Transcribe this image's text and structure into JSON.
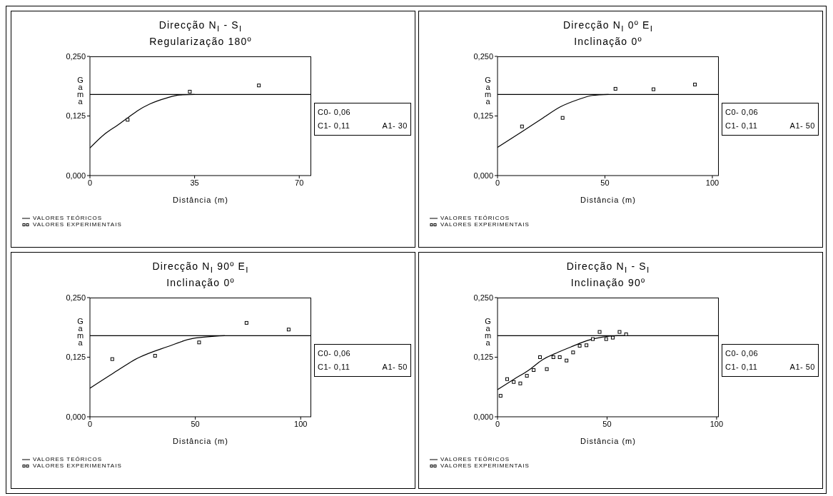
{
  "chart_data": [
    {
      "type": "scatter",
      "title": "Direcção N$_{I}$ - S$_{I}$",
      "subtitle": "Regularização 180º",
      "xlabel": "Distância (m)",
      "ylabel": "Gama",
      "xlim": [
        0,
        74
      ],
      "xticks": [
        0,
        35,
        70
      ],
      "ylim": [
        0,
        0.25
      ],
      "yticks": [
        {
          "value": 0,
          "label": "0,000"
        },
        {
          "value": 0.125,
          "label": "0,125"
        },
        {
          "value": 0.25,
          "label": "0,250"
        }
      ],
      "grid": false,
      "legend": "bottom left",
      "annotations": [
        "C0- 0,06",
        "C1- 0,11",
        "A1- 30"
      ],
      "ref_lines": [
        {
          "axis": "y",
          "value": 0.17,
          "color": "#000000"
        }
      ],
      "series": [
        {
          "name": "VALORES TEÓRICOS",
          "type": "line",
          "color": "#000000",
          "marker": "none",
          "x": [
            0,
            5.1,
            9.3,
            12.6,
            15.9,
            20,
            25.8,
            29.9,
            35
          ],
          "values": [
            0.058,
            0.088,
            0.106,
            0.121,
            0.136,
            0.15,
            0.163,
            0.169,
            0.17
          ]
        },
        {
          "name": "VALORES EXPERIMENTAIS",
          "type": "scatter",
          "color": "#000000",
          "marker": "square",
          "x": [
            12.6,
            33.4,
            56.5
          ],
          "values": [
            0.117,
            0.176,
            0.189
          ]
        }
      ]
    },
    {
      "type": "scatter",
      "title": "Direcção N$_{I}$ 0º E$_{I}$",
      "subtitle": "Inclinação 0º",
      "xlabel": "Distância (m)",
      "ylabel": "Gama",
      "xlim": [
        0,
        103
      ],
      "xticks": [
        0,
        50,
        100
      ],
      "ylim": [
        0,
        0.25
      ],
      "yticks": [
        {
          "value": 0,
          "label": "0,000"
        },
        {
          "value": 0.125,
          "label": "0,125"
        },
        {
          "value": 0.25,
          "label": "0,250"
        }
      ],
      "grid": false,
      "legend": "bottom left",
      "annotations": [
        "C0- 0,06",
        "C1- 0,11",
        "A1- 50"
      ],
      "ref_lines": [
        {
          "axis": "y",
          "value": 0.17,
          "color": "#000000"
        }
      ],
      "series": [
        {
          "name": "VALORES TEÓRICOS",
          "type": "line",
          "color": "#000000",
          "marker": "none",
          "x": [
            0,
            11.4,
            21.2,
            29.2,
            37.3,
            44.2,
            51.7
          ],
          "values": [
            0.059,
            0.092,
            0.121,
            0.144,
            0.159,
            0.168,
            0.17
          ]
        },
        {
          "name": "VALORES EXPERIMENTAIS",
          "type": "scatter",
          "color": "#000000",
          "marker": "square",
          "x": [
            11.4,
            30.3,
            54.9,
            72.6,
            91.9
          ],
          "values": [
            0.103,
            0.121,
            0.182,
            0.181,
            0.191
          ]
        }
      ]
    },
    {
      "type": "scatter",
      "title": "Direcção N$_{I}$ 90º E$_{I}$",
      "subtitle": "Inclinação 0º",
      "xlabel": "Distância (m)",
      "ylabel": "Gama",
      "xlim": [
        0,
        105
      ],
      "xticks": [
        0,
        50,
        100
      ],
      "ylim": [
        0,
        0.25
      ],
      "yticks": [
        {
          "value": 0,
          "label": "0,000"
        },
        {
          "value": 0.125,
          "label": "0,125"
        },
        {
          "value": 0.25,
          "label": "0,250"
        }
      ],
      "grid": false,
      "legend": "bottom left",
      "annotations": [
        "C0- 0,06",
        "C1- 0,11",
        "A1- 50"
      ],
      "ref_lines": [
        {
          "axis": "y",
          "value": 0.17,
          "color": "#000000"
        }
      ],
      "series": [
        {
          "name": "VALORES TEÓRICOS",
          "type": "line",
          "color": "#000000",
          "marker": "none",
          "x": [
            0,
            10.9,
            22.7,
            36.8,
            48.6,
            64
          ],
          "values": [
            0.06,
            0.091,
            0.123,
            0.147,
            0.164,
            0.17
          ]
        },
        {
          "name": "VALORES EXPERIMENTAIS",
          "type": "scatter",
          "color": "#000000",
          "marker": "square",
          "x": [
            10.6,
            30.9,
            51.8,
            74.3,
            94.3
          ],
          "values": [
            0.121,
            0.128,
            0.156,
            0.197,
            0.183
          ]
        }
      ]
    },
    {
      "type": "scatter",
      "title": "Direcção N$_{I}$ - S$_{I}$",
      "subtitle": "Inclinação 90º",
      "xlabel": "Distância (m)",
      "ylabel": "Gama",
      "xlim": [
        0,
        101
      ],
      "xticks": [
        0,
        50,
        100
      ],
      "ylim": [
        0,
        0.25
      ],
      "yticks": [
        {
          "value": 0,
          "label": "0,000"
        },
        {
          "value": 0.125,
          "label": "0,125"
        },
        {
          "value": 0.25,
          "label": "0,250"
        }
      ],
      "grid": false,
      "legend": "bottom left",
      "annotations": [
        "C0- 0,06",
        "C1- 0,11",
        "A1- 50"
      ],
      "ref_lines": [
        {
          "axis": "y",
          "value": 0.17,
          "color": "#000000"
        }
      ],
      "series": [
        {
          "name": "VALORES TEÓRICOS",
          "type": "line",
          "color": "#000000",
          "marker": "none",
          "x": [
            0,
            7.2,
            14,
            20.7,
            27.5,
            34.3,
            41,
            47.8,
            54.6,
            59.6
          ],
          "values": [
            0.057,
            0.078,
            0.097,
            0.12,
            0.135,
            0.148,
            0.16,
            0.167,
            0.17,
            0.17
          ]
        },
        {
          "name": "VALORES EXPERIMENTAIS",
          "type": "scatter",
          "color": "#000000",
          "marker": "square",
          "x": [
            1.4,
            4.4,
            7.4,
            10.4,
            13.4,
            16.5,
            19.4,
            22.5,
            25.5,
            28.4,
            31.5,
            34.5,
            37.5,
            40.6,
            43.5,
            46.6,
            49.6,
            52.6,
            55.7,
            58.7
          ],
          "values": [
            0.044,
            0.079,
            0.073,
            0.07,
            0.086,
            0.098,
            0.125,
            0.1,
            0.125,
            0.125,
            0.118,
            0.135,
            0.149,
            0.15,
            0.163,
            0.178,
            0.163,
            0.166,
            0.178,
            0.173
          ]
        }
      ]
    }
  ]
}
